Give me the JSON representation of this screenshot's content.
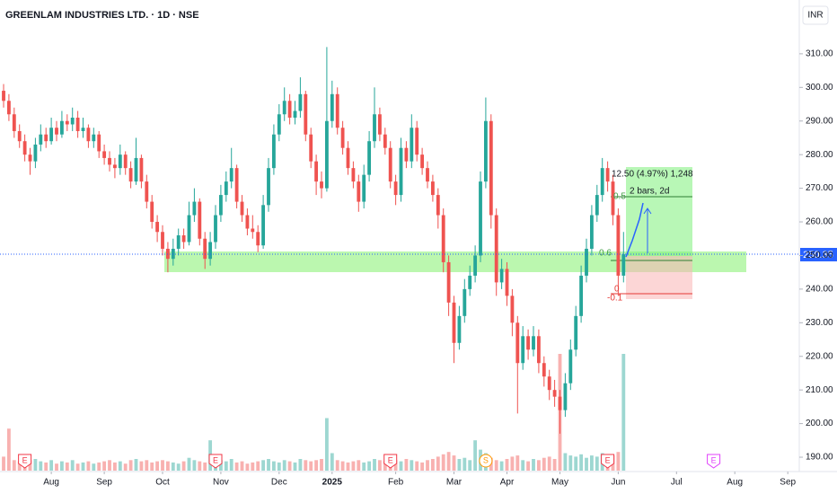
{
  "chart_data": {
    "type": "candlestick",
    "title": "GREENLAM INDUSTRIES LTD. · 1D · NSE",
    "currency": "INR",
    "last_price": {
      "value": 250.35,
      "label": "250.35"
    },
    "up_color": "#26a69a",
    "down_color": "#ef5350",
    "ylim": [
      186,
      326
    ],
    "yticks": [
      {
        "value": 190,
        "label": "190.00"
      },
      {
        "value": 200,
        "label": "200.00"
      },
      {
        "value": 210,
        "label": "210.00"
      },
      {
        "value": 220,
        "label": "220.00"
      },
      {
        "value": 230,
        "label": "230.00"
      },
      {
        "value": 240,
        "label": "240.00"
      },
      {
        "value": 250,
        "label": "250.00"
      },
      {
        "value": 260,
        "label": "260.00"
      },
      {
        "value": 270,
        "label": "270.00"
      },
      {
        "value": 280,
        "label": "280.00"
      },
      {
        "value": 290,
        "label": "290.00"
      },
      {
        "value": 300,
        "label": "300.00"
      },
      {
        "value": 310,
        "label": "310.00"
      }
    ],
    "xlim": [
      -0.68,
      150.17
    ],
    "xticks": [
      {
        "value": 9,
        "label": "Aug"
      },
      {
        "value": 19,
        "label": "Sep"
      },
      {
        "value": 30,
        "label": "Oct"
      },
      {
        "value": 41,
        "label": "Nov"
      },
      {
        "value": 52,
        "label": "Dec"
      },
      {
        "value": 62,
        "label": "2025"
      },
      {
        "value": 74,
        "label": "Feb"
      },
      {
        "value": 85,
        "label": "Mar"
      },
      {
        "value": 95,
        "label": "Apr"
      },
      {
        "value": 105,
        "label": "May"
      },
      {
        "value": 116,
        "label": "Jun"
      },
      {
        "value": 127,
        "label": "Jul"
      },
      {
        "value": 138,
        "label": "Aug"
      },
      {
        "value": 148,
        "label": "Sep"
      }
    ],
    "ohlc": [
      [
        299,
        301,
        294,
        296
      ],
      [
        296,
        298,
        290,
        292
      ],
      [
        292,
        294,
        285,
        287
      ],
      [
        287,
        289,
        282,
        284
      ],
      [
        284,
        286,
        278,
        280
      ],
      [
        280,
        282,
        274,
        278
      ],
      [
        278,
        285,
        276,
        283
      ],
      [
        283,
        289,
        281,
        286
      ],
      [
        286,
        288,
        282,
        284
      ],
      [
        284,
        291,
        283,
        288
      ],
      [
        288,
        290,
        284,
        286
      ],
      [
        286,
        293,
        285,
        290
      ],
      [
        290,
        292,
        287,
        289
      ],
      [
        289,
        294,
        287,
        291
      ],
      [
        291,
        293,
        285,
        287
      ],
      [
        287,
        291,
        285,
        288
      ],
      [
        288,
        289,
        282,
        284
      ],
      [
        284,
        288,
        282,
        286
      ],
      [
        286,
        287,
        279,
        281
      ],
      [
        281,
        283,
        277,
        279
      ],
      [
        279,
        281,
        275,
        277
      ],
      [
        277,
        279,
        273,
        276
      ],
      [
        276,
        283,
        274,
        280
      ],
      [
        280,
        281,
        274,
        276
      ],
      [
        276,
        278,
        270,
        272
      ],
      [
        272,
        285,
        271,
        279
      ],
      [
        279,
        280,
        270,
        272
      ],
      [
        272,
        274,
        264,
        266
      ],
      [
        266,
        268,
        258,
        260
      ],
      [
        260,
        262,
        254,
        257
      ],
      [
        257,
        259,
        250,
        252
      ],
      [
        252,
        254,
        245,
        249
      ],
      [
        249,
        255,
        247,
        252
      ],
      [
        252,
        258,
        250,
        256
      ],
      [
        256,
        258,
        252,
        254
      ],
      [
        254,
        266,
        253,
        262
      ],
      [
        262,
        270,
        260,
        266
      ],
      [
        266,
        267,
        253,
        255
      ],
      [
        255,
        257,
        246,
        249
      ],
      [
        249,
        257,
        247,
        254
      ],
      [
        254,
        265,
        252,
        262
      ],
      [
        262,
        271,
        260,
        268
      ],
      [
        268,
        275,
        266,
        272
      ],
      [
        272,
        282,
        270,
        276
      ],
      [
        276,
        277,
        264,
        266
      ],
      [
        266,
        268,
        260,
        262
      ],
      [
        262,
        264,
        256,
        258
      ],
      [
        258,
        262,
        255,
        257
      ],
      [
        257,
        259,
        251,
        253
      ],
      [
        253,
        268,
        252,
        265
      ],
      [
        265,
        279,
        263,
        276
      ],
      [
        276,
        289,
        274,
        286
      ],
      [
        286,
        295,
        284,
        292
      ],
      [
        292,
        300,
        290,
        296
      ],
      [
        296,
        298,
        289,
        291
      ],
      [
        291,
        296,
        289,
        293
      ],
      [
        293,
        303,
        291,
        298
      ],
      [
        298,
        299,
        284,
        286
      ],
      [
        286,
        288,
        276,
        278
      ],
      [
        278,
        280,
        268,
        272
      ],
      [
        272,
        275,
        267,
        270
      ],
      [
        270,
        312,
        269,
        290
      ],
      [
        290,
        302,
        288,
        298
      ],
      [
        298,
        300,
        286,
        288
      ],
      [
        288,
        290,
        280,
        282
      ],
      [
        282,
        284,
        274,
        276
      ],
      [
        276,
        278,
        270,
        272
      ],
      [
        272,
        274,
        263,
        266
      ],
      [
        266,
        277,
        264,
        274
      ],
      [
        274,
        287,
        272,
        284
      ],
      [
        284,
        300,
        282,
        292
      ],
      [
        292,
        294,
        284,
        286
      ],
      [
        286,
        288,
        280,
        282
      ],
      [
        282,
        284,
        270,
        272
      ],
      [
        272,
        274,
        265,
        268
      ],
      [
        268,
        285,
        266,
        282
      ],
      [
        282,
        284,
        276,
        278
      ],
      [
        278,
        292,
        276,
        288
      ],
      [
        288,
        290,
        278,
        280
      ],
      [
        280,
        282,
        274,
        276
      ],
      [
        276,
        278,
        270,
        272
      ],
      [
        272,
        274,
        266,
        268
      ],
      [
        268,
        270,
        258,
        262
      ],
      [
        262,
        264,
        245,
        248
      ],
      [
        248,
        250,
        232,
        236
      ],
      [
        236,
        238,
        218,
        224
      ],
      [
        224,
        235,
        222,
        232
      ],
      [
        232,
        243,
        230,
        240
      ],
      [
        240,
        247,
        238,
        244
      ],
      [
        244,
        253,
        242,
        250
      ],
      [
        250,
        275,
        248,
        272
      ],
      [
        272,
        297,
        270,
        290
      ],
      [
        290,
        292,
        258,
        262
      ],
      [
        262,
        264,
        238,
        242
      ],
      [
        242,
        249,
        240,
        246
      ],
      [
        246,
        248,
        235,
        238
      ],
      [
        238,
        240,
        226,
        230
      ],
      [
        230,
        232,
        203,
        218
      ],
      [
        218,
        229,
        216,
        226
      ],
      [
        226,
        228,
        219,
        222
      ],
      [
        222,
        229,
        220,
        226
      ],
      [
        226,
        228,
        215,
        218
      ],
      [
        218,
        220,
        211,
        214
      ],
      [
        214,
        216,
        207,
        210
      ],
      [
        210,
        213,
        205,
        208
      ],
      [
        208,
        210,
        197,
        204
      ],
      [
        204,
        215,
        202,
        212
      ],
      [
        212,
        225,
        210,
        222
      ],
      [
        222,
        235,
        220,
        232
      ],
      [
        232,
        247,
        230,
        244
      ],
      [
        244,
        255,
        242,
        252
      ],
      [
        252,
        265,
        250,
        262
      ],
      [
        262,
        271,
        260,
        268
      ],
      [
        268,
        279,
        266,
        276
      ],
      [
        276,
        278,
        269,
        272
      ],
      [
        272,
        274,
        259,
        262
      ],
      [
        262,
        264,
        238,
        244
      ],
      [
        244,
        257,
        242,
        250.35
      ]
    ],
    "volume": [
      120,
      360,
      90,
      80,
      70,
      90,
      100,
      80,
      70,
      90,
      60,
      80,
      70,
      90,
      60,
      70,
      80,
      60,
      70,
      80,
      90,
      70,
      80,
      60,
      90,
      100,
      80,
      90,
      70,
      80,
      90,
      80,
      70,
      60,
      80,
      110,
      90,
      80,
      70,
      260,
      120,
      90,
      80,
      100,
      70,
      80,
      60,
      70,
      80,
      90,
      100,
      80,
      70,
      90,
      80,
      70,
      100,
      90,
      80,
      90,
      100,
      450,
      150,
      90,
      80,
      70,
      80,
      90,
      70,
      80,
      100,
      90,
      80,
      70,
      90,
      80,
      100,
      90,
      80,
      70,
      90,
      100,
      120,
      140,
      160,
      130,
      100,
      110,
      90,
      260,
      180,
      150,
      110,
      90,
      80,
      100,
      120,
      130,
      90,
      80,
      100,
      90,
      110,
      120,
      100,
      1000,
      150,
      130,
      120,
      140,
      110,
      130,
      120,
      150,
      110,
      130,
      160,
      1000
    ],
    "events": [
      {
        "index": 4,
        "label": "E",
        "color": "#f23645"
      },
      {
        "index": 40,
        "label": "E",
        "color": "#f23645"
      },
      {
        "index": 73,
        "label": "E",
        "color": "#f23645"
      },
      {
        "index": 91,
        "label": "S",
        "color": "#ff9800"
      },
      {
        "index": 114,
        "label": "E",
        "color": "#f23645"
      },
      {
        "index": 134,
        "label": "E",
        "color": "#e040fb"
      }
    ],
    "annotations": {
      "position_stats": "12.50 (4.97%) 1,248",
      "bars": "2 bars, 2d",
      "fib_05": "0.5",
      "fib_0618": "0.6",
      "fib_0": "0",
      "fib_m01": "-0.1"
    }
  }
}
